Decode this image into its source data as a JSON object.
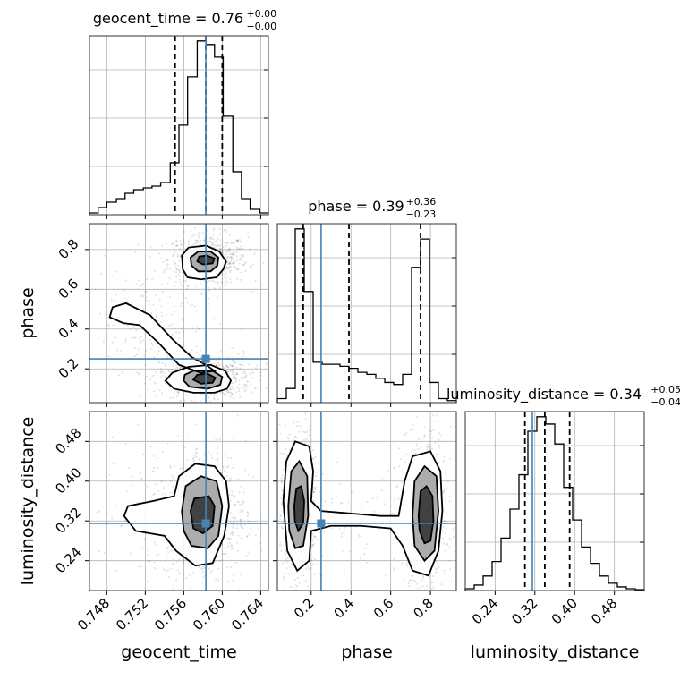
{
  "colors": {
    "truth": "#4682b4",
    "ink": "#000000",
    "grid": "#b0b0b0"
  },
  "chart_data": {
    "type": "corner",
    "parameters": [
      "geocent_time",
      "phase",
      "luminosity_distance"
    ],
    "truths": {
      "geocent_time": 0.7583,
      "phase": 0.25,
      "luminosity_distance": 0.315
    },
    "titles": [
      {
        "param": "geocent_time",
        "label": "geocent_time = 0.76",
        "plus": "+0.00",
        "minus": "−0.00"
      },
      {
        "param": "phase",
        "label": "phase = 0.39",
        "plus": "+0.36",
        "minus": "−0.23"
      },
      {
        "param": "luminosity_distance",
        "label": "luminosity_distance = 0.34",
        "plus": "+0.05",
        "minus": "−0.04"
      }
    ],
    "axes": {
      "geocent_time": {
        "range": [
          0.7462,
          0.7648
        ],
        "ticks": [
          "0.748",
          "0.752",
          "0.756",
          "0.760",
          "0.764"
        ],
        "tick_values": [
          0.748,
          0.752,
          0.756,
          0.76,
          0.764
        ],
        "label": "geocent_time"
      },
      "phase": {
        "range": [
          0.03,
          0.93
        ],
        "ticks": [
          "0.2",
          "0.4",
          "0.6",
          "0.8"
        ],
        "tick_values": [
          0.2,
          0.4,
          0.6,
          0.8
        ],
        "label": "phase"
      },
      "luminosity_distance": {
        "range": [
          0.18,
          0.54
        ],
        "ticks": [
          "0.24",
          "0.32",
          "0.40",
          "0.48"
        ],
        "tick_values": [
          0.24,
          0.32,
          0.4,
          0.48
        ],
        "label": "luminosity_distance"
      }
    },
    "histograms": [
      {
        "param": "geocent_time",
        "edges": [
          0.7462,
          0.7471,
          0.748,
          0.749,
          0.7499,
          0.7508,
          0.7518,
          0.7527,
          0.7536,
          0.7546,
          0.7555,
          0.7564,
          0.7574,
          0.7583,
          0.7592,
          0.7601,
          0.7611,
          0.762,
          0.7629,
          0.7639,
          0.7648
        ],
        "counts": [
          0.01,
          0.04,
          0.07,
          0.09,
          0.12,
          0.14,
          0.15,
          0.16,
          0.18,
          0.29,
          0.5,
          0.77,
          0.97,
          0.95,
          0.88,
          0.55,
          0.24,
          0.09,
          0.03,
          0.01
        ],
        "quantiles": [
          0.7551,
          0.7583,
          0.76
        ]
      },
      {
        "param": "phase",
        "edges": [
          0.03,
          0.075,
          0.12,
          0.165,
          0.21,
          0.255,
          0.3,
          0.345,
          0.39,
          0.435,
          0.48,
          0.525,
          0.57,
          0.615,
          0.66,
          0.705,
          0.75,
          0.795,
          0.84,
          0.885,
          0.93
        ],
        "counts": [
          0.02,
          0.07,
          0.86,
          0.55,
          0.2,
          0.19,
          0.19,
          0.18,
          0.17,
          0.15,
          0.14,
          0.12,
          0.1,
          0.09,
          0.14,
          0.67,
          0.81,
          0.1,
          0.02,
          0.01
        ],
        "quantiles": [
          0.16,
          0.39,
          0.75
        ]
      },
      {
        "param": "luminosity_distance",
        "edges": [
          0.18,
          0.198,
          0.216,
          0.234,
          0.252,
          0.27,
          0.288,
          0.306,
          0.324,
          0.342,
          0.36,
          0.378,
          0.396,
          0.414,
          0.432,
          0.45,
          0.468,
          0.486,
          0.504,
          0.522,
          0.54
        ],
        "counts": [
          0.01,
          0.03,
          0.08,
          0.16,
          0.29,
          0.45,
          0.64,
          0.88,
          0.96,
          0.92,
          0.81,
          0.57,
          0.39,
          0.24,
          0.15,
          0.08,
          0.04,
          0.02,
          0.01,
          0.005
        ],
        "quantiles": [
          0.3,
          0.34,
          0.39
        ]
      }
    ],
    "pairs": [
      {
        "x": "geocent_time",
        "y": "phase",
        "modes": [
          {
            "x": 0.7585,
            "y": 0.75,
            "sx": 0.0013,
            "sy": 0.04,
            "w": 1.0
          },
          {
            "x": 0.7583,
            "y": 0.16,
            "sx": 0.0015,
            "sy": 0.035,
            "w": 1.0
          },
          {
            "x": 0.7525,
            "y": 0.45,
            "sx": 0.002,
            "sy": 0.08,
            "w": 0.25
          }
        ],
        "contours": [
          [
            [
              0.7559,
              0.7
            ],
            [
              0.7564,
              0.66
            ],
            [
              0.7578,
              0.65
            ],
            [
              0.7594,
              0.66
            ],
            [
              0.7601,
              0.7
            ],
            [
              0.7604,
              0.74
            ],
            [
              0.7597,
              0.79
            ],
            [
              0.7583,
              0.82
            ],
            [
              0.7565,
              0.81
            ],
            [
              0.7558,
              0.77
            ]
          ],
          [
            [
              0.7568,
              0.72
            ],
            [
              0.7575,
              0.69
            ],
            [
              0.7588,
              0.69
            ],
            [
              0.7595,
              0.72
            ],
            [
              0.7596,
              0.76
            ],
            [
              0.7588,
              0.79
            ],
            [
              0.7575,
              0.79
            ],
            [
              0.7567,
              0.76
            ]
          ],
          [
            [
              0.7574,
              0.74
            ],
            [
              0.758,
              0.725
            ],
            [
              0.759,
              0.73
            ],
            [
              0.7592,
              0.755
            ],
            [
              0.7584,
              0.77
            ],
            [
              0.7576,
              0.765
            ]
          ],
          [
            [
              0.7541,
              0.14
            ],
            [
              0.755,
              0.1
            ],
            [
              0.757,
              0.08
            ],
            [
              0.7592,
              0.08
            ],
            [
              0.7605,
              0.1
            ],
            [
              0.7609,
              0.14
            ],
            [
              0.7603,
              0.19
            ],
            [
              0.7588,
              0.22
            ],
            [
              0.7565,
              0.21
            ],
            [
              0.7548,
              0.18
            ]
          ],
          [
            [
              0.756,
              0.14
            ],
            [
              0.7566,
              0.11
            ],
            [
              0.7585,
              0.1
            ],
            [
              0.7598,
              0.12
            ],
            [
              0.76,
              0.16
            ],
            [
              0.759,
              0.19
            ],
            [
              0.757,
              0.19
            ],
            [
              0.7561,
              0.17
            ]
          ],
          [
            [
              0.757,
              0.145
            ],
            [
              0.7578,
              0.125
            ],
            [
              0.759,
              0.13
            ],
            [
              0.7593,
              0.155
            ],
            [
              0.7585,
              0.175
            ],
            [
              0.7574,
              0.17
            ]
          ],
          [
            [
              0.7483,
              0.46
            ],
            [
              0.7486,
              0.51
            ],
            [
              0.75,
              0.53
            ],
            [
              0.7525,
              0.47
            ],
            [
              0.7548,
              0.35
            ],
            [
              0.7568,
              0.26
            ],
            [
              0.7583,
              0.22
            ],
            [
              0.7592,
              0.19
            ],
            [
              0.7578,
              0.18
            ],
            [
              0.7555,
              0.22
            ],
            [
              0.7534,
              0.33
            ],
            [
              0.7514,
              0.42
            ],
            [
              0.7497,
              0.43
            ]
          ]
        ]
      },
      {
        "x": "geocent_time",
        "y": "luminosity_distance",
        "modes": [
          {
            "x": 0.7583,
            "y": 0.335,
            "sx": 0.0013,
            "sy": 0.045,
            "w": 1.0
          },
          {
            "x": 0.753,
            "y": 0.33,
            "sx": 0.0018,
            "sy": 0.05,
            "w": 0.2
          }
        ],
        "contours": [
          [
            [
              0.7498,
              0.33
            ],
            [
              0.7502,
              0.35
            ],
            [
              0.7528,
              0.36
            ],
            [
              0.755,
              0.37
            ],
            [
              0.7555,
              0.41
            ],
            [
              0.7572,
              0.435
            ],
            [
              0.7592,
              0.43
            ],
            [
              0.7604,
              0.4
            ],
            [
              0.7607,
              0.35
            ],
            [
              0.7602,
              0.29
            ],
            [
              0.759,
              0.235
            ],
            [
              0.7572,
              0.23
            ],
            [
              0.7552,
              0.26
            ],
            [
              0.754,
              0.29
            ],
            [
              0.751,
              0.3
            ]
          ],
          [
            [
              0.7558,
              0.34
            ],
            [
              0.7562,
              0.39
            ],
            [
              0.7578,
              0.41
            ],
            [
              0.7594,
              0.4
            ],
            [
              0.76,
              0.35
            ],
            [
              0.7596,
              0.29
            ],
            [
              0.7585,
              0.265
            ],
            [
              0.7568,
              0.27
            ],
            [
              0.756,
              0.3
            ]
          ],
          [
            [
              0.7567,
              0.34
            ],
            [
              0.7571,
              0.365
            ],
            [
              0.7586,
              0.37
            ],
            [
              0.7592,
              0.35
            ],
            [
              0.759,
              0.31
            ],
            [
              0.758,
              0.295
            ],
            [
              0.757,
              0.305
            ]
          ]
        ]
      },
      {
        "x": "phase",
        "y": "luminosity_distance",
        "modes": [
          {
            "x": 0.14,
            "y": 0.345,
            "sx": 0.03,
            "sy": 0.05,
            "w": 1.0
          },
          {
            "x": 0.77,
            "y": 0.325,
            "sx": 0.035,
            "sy": 0.055,
            "w": 1.0
          },
          {
            "x": 0.45,
            "y": 0.32,
            "sx": 0.15,
            "sy": 0.03,
            "w": 0.15
          }
        ],
        "contours": [
          [
            [
              0.06,
              0.36
            ],
            [
              0.075,
              0.44
            ],
            [
              0.12,
              0.48
            ],
            [
              0.19,
              0.47
            ],
            [
              0.21,
              0.42
            ],
            [
              0.2,
              0.36
            ],
            [
              0.25,
              0.34
            ],
            [
              0.4,
              0.335
            ],
            [
              0.55,
              0.33
            ],
            [
              0.64,
              0.33
            ],
            [
              0.67,
              0.4
            ],
            [
              0.71,
              0.45
            ],
            [
              0.8,
              0.46
            ],
            [
              0.85,
              0.42
            ],
            [
              0.86,
              0.34
            ],
            [
              0.84,
              0.26
            ],
            [
              0.79,
              0.21
            ],
            [
              0.71,
              0.22
            ],
            [
              0.66,
              0.27
            ],
            [
              0.6,
              0.305
            ],
            [
              0.45,
              0.31
            ],
            [
              0.3,
              0.31
            ],
            [
              0.2,
              0.3
            ],
            [
              0.19,
              0.24
            ],
            [
              0.13,
              0.22
            ],
            [
              0.08,
              0.26
            ]
          ],
          [
            [
              0.085,
              0.35
            ],
            [
              0.1,
              0.42
            ],
            [
              0.14,
              0.44
            ],
            [
              0.18,
              0.41
            ],
            [
              0.185,
              0.33
            ],
            [
              0.16,
              0.27
            ],
            [
              0.12,
              0.265
            ],
            [
              0.09,
              0.3
            ]
          ],
          [
            [
              0.115,
              0.35
            ],
            [
              0.125,
              0.385
            ],
            [
              0.15,
              0.39
            ],
            [
              0.165,
              0.36
            ],
            [
              0.16,
              0.315
            ],
            [
              0.135,
              0.3
            ],
            [
              0.118,
              0.32
            ]
          ],
          [
            [
              0.71,
              0.33
            ],
            [
              0.72,
              0.4
            ],
            [
              0.77,
              0.43
            ],
            [
              0.83,
              0.41
            ],
            [
              0.84,
              0.34
            ],
            [
              0.82,
              0.26
            ],
            [
              0.77,
              0.24
            ],
            [
              0.72,
              0.27
            ]
          ],
          [
            [
              0.74,
              0.33
            ],
            [
              0.75,
              0.38
            ],
            [
              0.78,
              0.39
            ],
            [
              0.81,
              0.37
            ],
            [
              0.815,
              0.32
            ],
            [
              0.8,
              0.28
            ],
            [
              0.77,
              0.275
            ],
            [
              0.745,
              0.3
            ]
          ]
        ]
      }
    ]
  }
}
